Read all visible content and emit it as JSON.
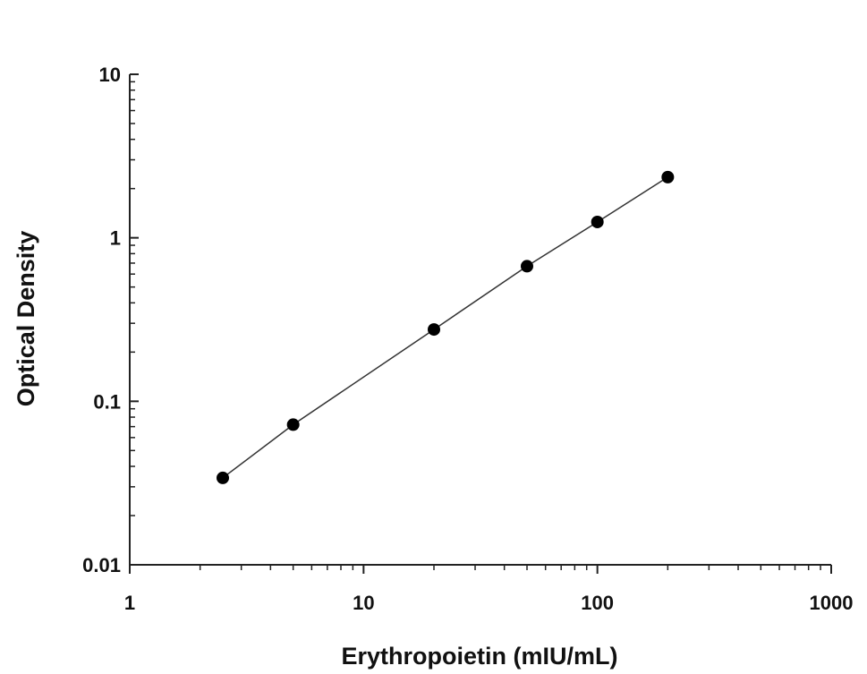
{
  "chart_data": {
    "type": "scatter",
    "title": "",
    "xlabel": "Erythropoietin (mIU/mL)",
    "ylabel": "Optical Density",
    "xscale": "log",
    "yscale": "log",
    "xlim": [
      1,
      1000
    ],
    "ylim": [
      0.01,
      10
    ],
    "x_ticks": [
      1,
      10,
      100,
      1000
    ],
    "x_tick_labels": [
      "1",
      "10",
      "100",
      "1000"
    ],
    "y_ticks": [
      0.01,
      0.1,
      1,
      10
    ],
    "y_tick_labels": [
      "0.01",
      "0.1",
      "1",
      "10"
    ],
    "grid": false,
    "legend": "none",
    "series": [
      {
        "x": [
          2.5,
          5,
          20,
          50,
          100,
          200
        ],
        "y": [
          0.034,
          0.072,
          0.275,
          0.67,
          1.25,
          2.35
        ],
        "marker": "circle",
        "fit_line": true
      }
    ],
    "colors": {
      "points": "#000000",
      "line": "#333333",
      "axes": "#222222"
    }
  }
}
